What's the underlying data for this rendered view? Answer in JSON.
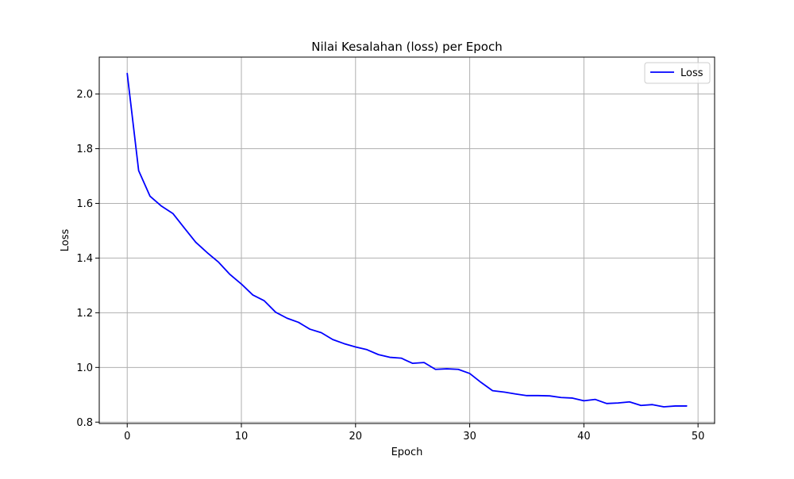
{
  "chart_data": {
    "type": "line",
    "title": "Nilai Kesalahan (loss) per Epoch",
    "xlabel": "Epoch",
    "ylabel": "Loss",
    "xlim": [
      -2.45,
      51.45
    ],
    "ylim": [
      0.795,
      2.135
    ],
    "xticks": [
      0,
      10,
      20,
      30,
      40,
      50
    ],
    "yticks": [
      0.8,
      1.0,
      1.2,
      1.4,
      1.6,
      1.8,
      2.0
    ],
    "xtick_labels": [
      "0",
      "10",
      "20",
      "30",
      "40",
      "50"
    ],
    "ytick_labels": [
      "0.8",
      "1.0",
      "1.2",
      "1.4",
      "1.6",
      "1.8",
      "2.0"
    ],
    "grid": true,
    "legend": {
      "placement": "upper-right"
    },
    "series": [
      {
        "name": "Loss",
        "color": "#0000ff",
        "x": [
          0,
          1,
          2,
          3,
          4,
          5,
          6,
          7,
          8,
          9,
          10,
          11,
          12,
          13,
          14,
          15,
          16,
          17,
          18,
          19,
          20,
          21,
          22,
          23,
          24,
          25,
          26,
          27,
          28,
          29,
          30,
          31,
          32,
          33,
          34,
          35,
          36,
          37,
          38,
          39,
          40,
          41,
          42,
          43,
          44,
          45,
          46,
          47,
          48,
          49
        ],
        "y": [
          2.075,
          1.72,
          1.626,
          1.59,
          1.563,
          1.51,
          1.458,
          1.42,
          1.385,
          1.34,
          1.305,
          1.265,
          1.244,
          1.202,
          1.18,
          1.165,
          1.14,
          1.127,
          1.102,
          1.087,
          1.075,
          1.065,
          1.047,
          1.037,
          1.034,
          1.015,
          1.018,
          0.993,
          0.995,
          0.993,
          0.978,
          0.945,
          0.915,
          0.91,
          0.903,
          0.897,
          0.897,
          0.896,
          0.89,
          0.888,
          0.878,
          0.883,
          0.868,
          0.87,
          0.874,
          0.861,
          0.864,
          0.856,
          0.859,
          0.859
        ]
      }
    ]
  }
}
